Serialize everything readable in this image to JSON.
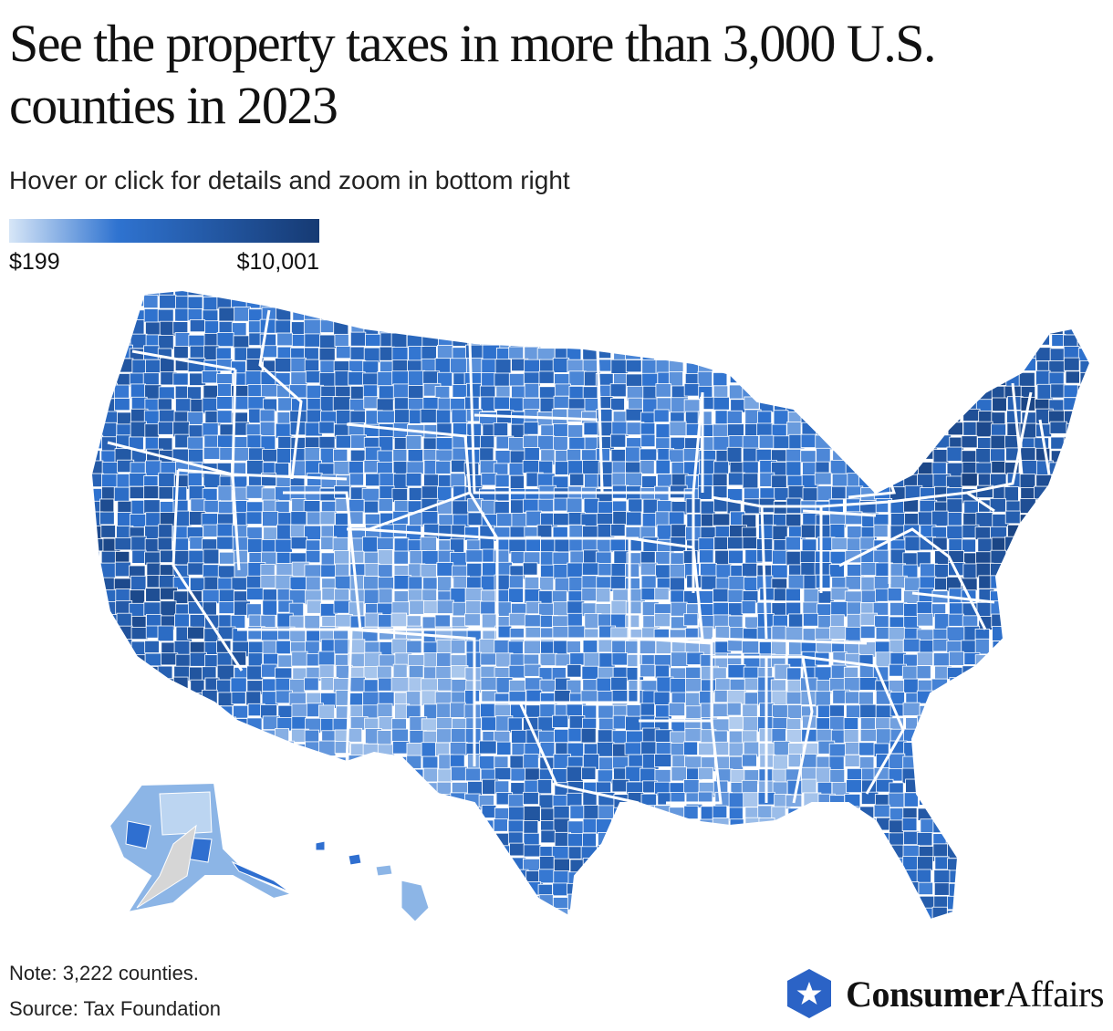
{
  "header": {
    "title": "See the property taxes in more than 3,000 U.S. counties in 2023",
    "subtitle": "Hover or click for details and zoom in bottom right"
  },
  "legend": {
    "min_label": "$199",
    "max_label": "$10,001",
    "min_value": 199,
    "max_value": 10001,
    "color_low": "#d7e6f7",
    "color_mid": "#2f73d0",
    "color_high": "#163a73"
  },
  "map": {
    "type": "choropleth",
    "geography": "U.S. counties",
    "metric": "Property taxes",
    "year": 2023,
    "no_data_color": "#d6d6d6",
    "border_color": "#ffffff"
  },
  "footer": {
    "note": "Note: 3,222 counties.",
    "source": "Source: Tax Foundation"
  },
  "brand": {
    "name_bold": "Consumer",
    "name_regular": "Affairs",
    "color": "#2b63c6"
  }
}
